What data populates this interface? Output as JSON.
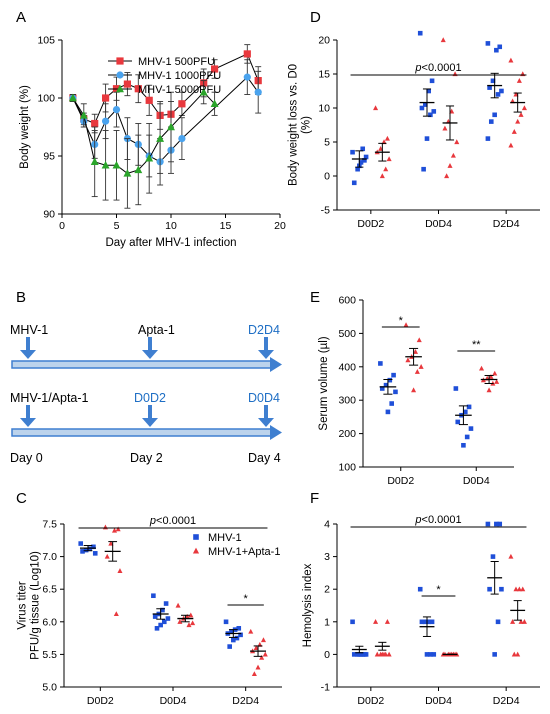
{
  "colors": {
    "red": "#e8383d",
    "blue": "#1f4fd8",
    "light_blue": "#4aa3ee",
    "green": "#2aa52a",
    "label_blue": "#1f6fc5",
    "arrow": "#3f7fd0",
    "black": "#000000"
  },
  "chart_data": [
    {
      "panel": "A",
      "type": "line",
      "xlabel": "Day after MHV-1 infection",
      "ylabel": "Body weight (%)",
      "xlim": [
        0,
        20
      ],
      "ylim": [
        90,
        105
      ],
      "xticks": [
        0,
        5,
        10,
        15,
        20
      ],
      "yticks": [
        90,
        95,
        100,
        105
      ],
      "legend_position": "top-center",
      "series": [
        {
          "name": "MHV-1 500PFU",
          "marker": "square",
          "color": "#e8383d",
          "x": [
            1,
            2,
            3,
            4,
            5,
            6,
            7,
            8,
            9,
            10,
            11,
            13,
            14,
            17,
            18
          ],
          "y": [
            100,
            98.2,
            97.8,
            100,
            100.8,
            101.2,
            100.8,
            99.8,
            98.5,
            98.6,
            99.5,
            101.3,
            102.5,
            103.8,
            101.5
          ],
          "err": [
            0.3,
            0.5,
            0.8,
            1.2,
            1.0,
            1.0,
            1.2,
            1.3,
            1.2,
            1.1,
            1.0,
            1.2,
            0.8,
            0.8,
            1.2
          ]
        },
        {
          "name": "MHV-1 1000PFU",
          "marker": "circle",
          "color": "#4aa3ee",
          "x": [
            1,
            2,
            3,
            4,
            5,
            6,
            7,
            8,
            9,
            10,
            11,
            17,
            18
          ],
          "y": [
            100,
            98,
            96,
            98,
            99,
            96.5,
            96,
            95,
            94.5,
            95.5,
            96.5,
            101.8,
            100.5
          ],
          "err": [
            0.3,
            0.5,
            1.2,
            1.5,
            1.5,
            1.8,
            1.8,
            1.8,
            2.0,
            2.0,
            1.8,
            1.5,
            1.8
          ]
        },
        {
          "name": "MHV-1 5000PFU",
          "marker": "triangle",
          "color": "#2aa52a",
          "x": [
            1,
            2,
            3,
            4,
            5,
            6,
            7,
            8,
            9,
            10,
            13,
            14
          ],
          "y": [
            100,
            98.5,
            94.5,
            94.2,
            94.2,
            93.5,
            93.8,
            94.8,
            96.5,
            97.5,
            100.5,
            99.5
          ],
          "err": [
            0.3,
            1.0,
            3.0,
            3.0,
            3.0,
            3.0,
            3.0,
            3.0,
            3.0,
            3.0,
            1.0,
            1.0
          ]
        }
      ]
    },
    {
      "panel": "D",
      "type": "scatter",
      "ylabel": "Body weight loss vs. D0 (%)",
      "categories": [
        "D0D2",
        "D0D4",
        "D2D4"
      ],
      "ylim": [
        -5,
        20
      ],
      "yticks": [
        -5,
        0,
        5,
        10,
        15,
        20
      ],
      "significance": [
        {
          "text": "p<0.0001",
          "from": "D0D2",
          "to": "D2D4"
        }
      ],
      "series": [
        {
          "group": "MHV-1",
          "marker": "square",
          "color": "#1f4fd8",
          "mean": [
            2.5,
            10.8,
            13.3
          ],
          "sem": [
            1.2,
            2.0,
            1.8
          ],
          "points": [
            [
              3.5,
              2.3,
              2.0,
              1.0,
              -1.0,
              2.8,
              4.0,
              1.5
            ],
            [
              21,
              14,
              12.5,
              10.5,
              10,
              9.5,
              9,
              5.5,
              1
            ],
            [
              19.5,
              19,
              18.5,
              14,
              13,
              12.5,
              12,
              9,
              8,
              5.5
            ]
          ]
        },
        {
          "group": "MHV-1+Apta-1",
          "marker": "triangle",
          "color": "#e8383d",
          "mean": [
            3.5,
            7.8,
            10.8
          ],
          "sem": [
            1.3,
            2.5,
            1.4
          ],
          "points": [
            [
              10,
              5.5,
              5,
              4,
              3.5,
              2.5,
              1,
              0
            ],
            [
              20,
              15,
              9.5,
              8,
              7,
              5,
              3,
              1.5,
              0
            ],
            [
              17,
              15,
              14,
              12,
              11,
              10,
              9,
              8,
              6.5,
              4.5
            ]
          ]
        }
      ]
    },
    {
      "panel": "E",
      "type": "scatter",
      "ylabel": "Serum volume (µl)",
      "categories": [
        "D0D2",
        "D0D4"
      ],
      "ylim": [
        100,
        600
      ],
      "yticks": [
        100,
        200,
        300,
        400,
        500,
        600
      ],
      "significance": [
        {
          "text": "*",
          "category": "D0D2"
        },
        {
          "text": "**",
          "category": "D0D4"
        }
      ],
      "series": [
        {
          "group": "MHV-1",
          "marker": "square",
          "color": "#1f4fd8",
          "mean": [
            340,
            255
          ],
          "sem": [
            22,
            28
          ],
          "points": [
            [
              410,
              375,
              360,
              345,
              335,
              325,
              290,
              265
            ],
            [
              335,
              280,
              265,
              255,
              235,
              215,
              190,
              165
            ]
          ]
        },
        {
          "group": "MHV-1+Apta-1",
          "marker": "triangle",
          "color": "#e8383d",
          "mean": [
            430,
            362
          ],
          "sem": [
            25,
            12
          ],
          "points": [
            [
              525,
              480,
              445,
              430,
              420,
              400,
              385,
              330
            ],
            [
              395,
              380,
              370,
              365,
              360,
              355,
              350,
              330
            ]
          ]
        }
      ]
    },
    {
      "panel": "C",
      "type": "scatter",
      "ylabel": "Virus titer PFU/g tissue (Log10)",
      "categories": [
        "D0D2",
        "D0D4",
        "D2D4"
      ],
      "ylim": [
        5.0,
        7.5
      ],
      "yticks": [
        5.0,
        5.5,
        6.0,
        6.5,
        7.0,
        7.5
      ],
      "legend_position": "top-right",
      "significance": [
        {
          "text": "p<0.0001",
          "from": "D0D2",
          "to": "D2D4"
        },
        {
          "text": "*",
          "category": "D2D4"
        }
      ],
      "series": [
        {
          "name": "MHV-1",
          "marker": "square",
          "color": "#1f4fd8",
          "mean": [
            7.13,
            6.12,
            5.82
          ],
          "sem": [
            0.04,
            0.08,
            0.06
          ],
          "points": [
            [
              7.2,
              7.15,
              7.12,
              7.1,
              7.08,
              7.05
            ],
            [
              6.4,
              6.28,
              6.18,
              6.12,
              6.08,
              6.05,
              6.0,
              5.95,
              5.9
            ],
            [
              6.0,
              5.9,
              5.88,
              5.85,
              5.82,
              5.8,
              5.75,
              5.72,
              5.62
            ]
          ]
        },
        {
          "name": "MHV-1+Apta-1",
          "marker": "triangle",
          "color": "#e8383d",
          "mean": [
            7.08,
            6.05,
            5.55
          ],
          "sem": [
            0.15,
            0.05,
            0.08
          ],
          "points": [
            [
              7.45,
              7.42,
              7.4,
              7.2,
              7.0,
              6.78,
              6.12
            ],
            [
              6.25,
              6.1,
              6.08,
              6.05,
              6.0,
              5.98,
              5.95
            ],
            [
              5.85,
              5.72,
              5.65,
              5.6,
              5.55,
              5.5,
              5.45,
              5.3,
              5.2
            ]
          ]
        }
      ]
    },
    {
      "panel": "F",
      "type": "scatter",
      "ylabel": "Hemolysis index",
      "categories": [
        "D0D2",
        "D0D4",
        "D2D4"
      ],
      "ylim": [
        -1,
        4
      ],
      "yticks": [
        -1,
        0,
        1,
        2,
        3,
        4
      ],
      "significance": [
        {
          "text": "p<0.0001",
          "from": "D0D2",
          "to": "D2D4"
        },
        {
          "text": "*",
          "category": "D0D4"
        }
      ],
      "series": [
        {
          "group": "MHV-1",
          "marker": "square",
          "color": "#1f4fd8",
          "mean": [
            0.15,
            0.85,
            2.35
          ],
          "sem": [
            0.1,
            0.3,
            0.5
          ],
          "points": [
            [
              1,
              0,
              0,
              0,
              0,
              0,
              0,
              0
            ],
            [
              2,
              1,
              1,
              1,
              1,
              0,
              0,
              0
            ],
            [
              4,
              4,
              4,
              3,
              2,
              2,
              1,
              0
            ]
          ]
        },
        {
          "group": "MHV-1+Apta-1",
          "marker": "triangle",
          "color": "#e8383d",
          "mean": [
            0.25,
            0.0,
            1.35
          ],
          "sem": [
            0.12,
            0.0,
            0.3
          ],
          "points": [
            [
              1,
              1,
              0,
              0,
              0,
              0,
              0,
              0
            ],
            [
              0,
              0,
              0,
              0,
              0,
              0,
              0,
              0
            ],
            [
              3,
              2,
              2,
              2,
              1,
              1,
              1,
              0,
              0
            ]
          ]
        }
      ]
    }
  ],
  "panels": {
    "A": "A",
    "B": "B",
    "C": "C",
    "D": "D",
    "E": "E",
    "F": "F"
  },
  "schematic": {
    "row1_start": "MHV-1",
    "row1_mid": "Apta-1",
    "row1_end": "D2D4",
    "row2_start": "MHV-1/Apta-1",
    "row2_mid": "D0D2",
    "row2_end": "D0D4",
    "days": [
      "Day 0",
      "Day 2",
      "Day 4"
    ]
  }
}
